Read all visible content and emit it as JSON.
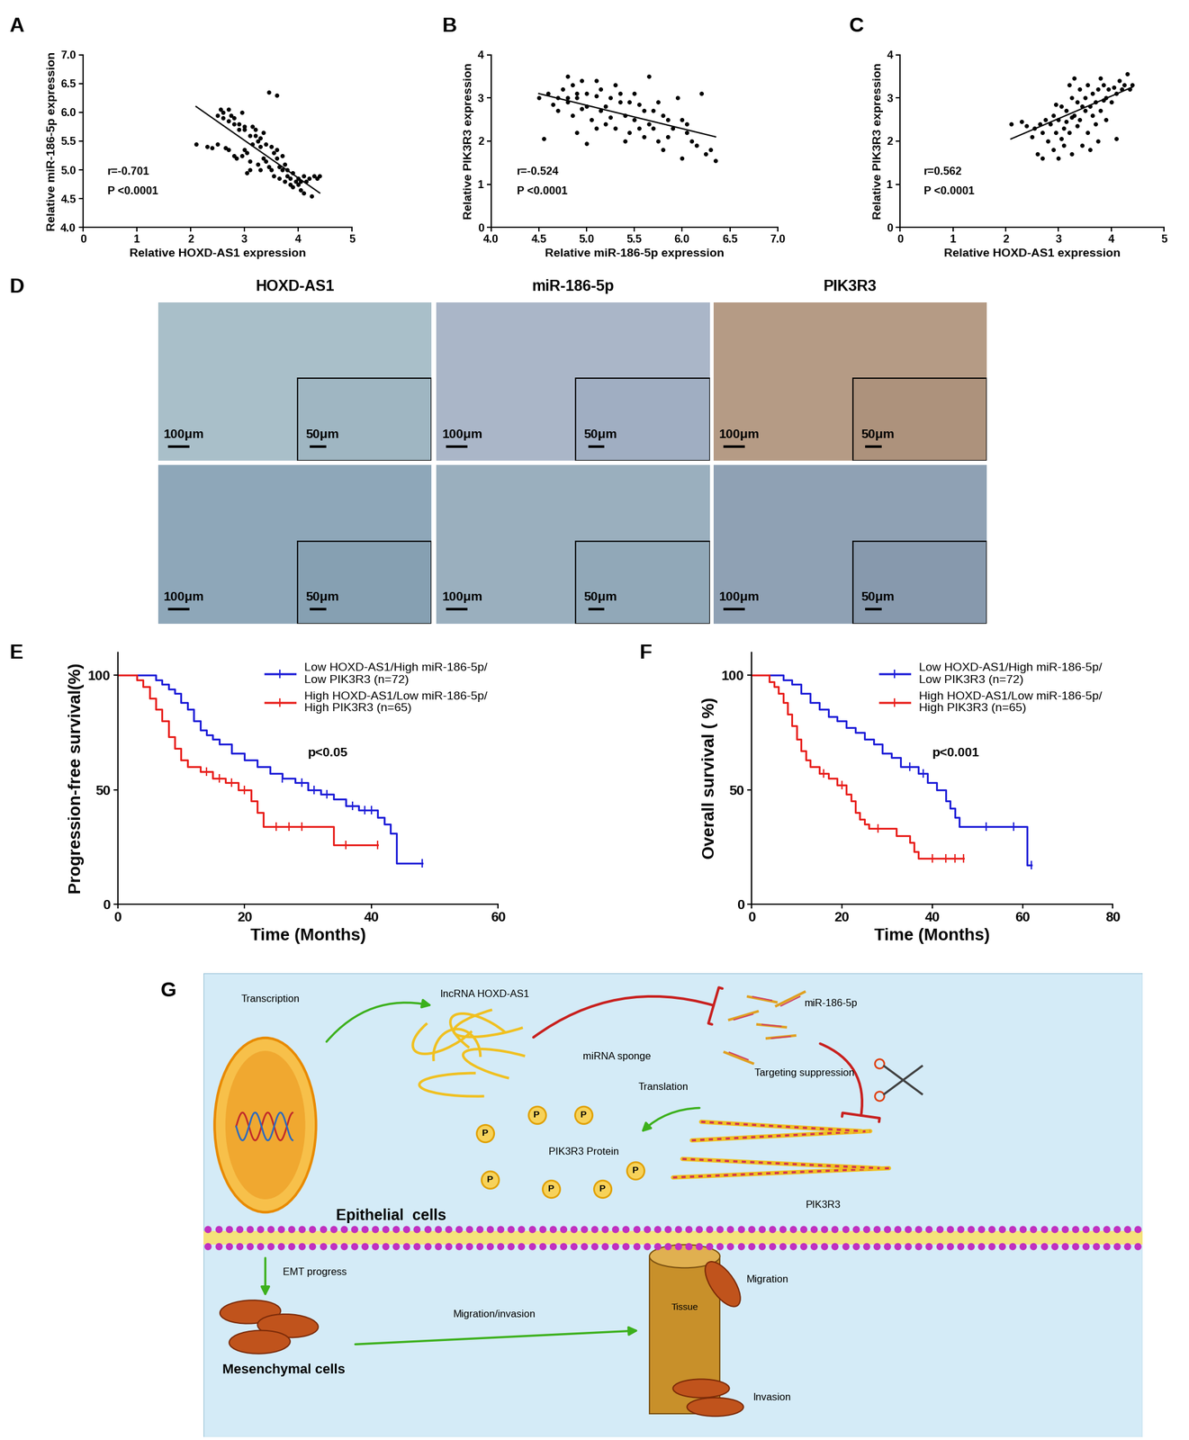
{
  "chart_data": [
    {
      "type": "scatter",
      "title": "A",
      "x_label": "Relative HOXD-AS1 expression",
      "y_label": "Relative miR-186-5p expression",
      "x": [
        2.1,
        2.3,
        2.4,
        2.5,
        2.5,
        2.55,
        2.6,
        2.6,
        2.7,
        2.7,
        2.75,
        2.8,
        2.8,
        2.65,
        2.7,
        2.8,
        2.85,
        2.9,
        2.9,
        2.95,
        3.0,
        3.0,
        3.05,
        3.1,
        3.1,
        3.1,
        3.15,
        3.2,
        3.2,
        3.25,
        3.25,
        3.3,
        3.3,
        3.35,
        3.35,
        3.4,
        3.4,
        3.45,
        3.5,
        3.5,
        3.55,
        3.55,
        3.6,
        3.6,
        3.6,
        3.65,
        3.7,
        3.7,
        3.75,
        3.75,
        3.8,
        3.8,
        3.85,
        3.9,
        3.9,
        3.95,
        4.0,
        4.0,
        4.05,
        4.1,
        4.1,
        4.15,
        4.2,
        4.25,
        4.3,
        4.35,
        4.4,
        3.05,
        2.95,
        3.15,
        3.45,
        3.65,
        3.85,
        4.05,
        3.3,
        3.0
      ],
      "values": [
        5.45,
        5.4,
        5.38,
        5.45,
        5.95,
        6.05,
        6.0,
        5.9,
        6.05,
        5.85,
        5.95,
        5.9,
        5.8,
        5.38,
        5.35,
        5.25,
        5.2,
        5.8,
        5.7,
        6.0,
        5.75,
        5.7,
        5.3,
        5.6,
        5.15,
        5.0,
        5.75,
        5.7,
        5.6,
        5.5,
        5.1,
        5.4,
        5.0,
        5.65,
        5.2,
        5.45,
        5.15,
        6.35,
        5.4,
        5.0,
        5.3,
        4.9,
        6.3,
        5.35,
        5.2,
        4.85,
        5.25,
        5.0,
        5.1,
        4.8,
        5.0,
        4.9,
        4.75,
        4.95,
        4.7,
        4.8,
        4.85,
        4.75,
        4.65,
        4.9,
        4.6,
        4.8,
        4.85,
        4.55,
        4.9,
        4.85,
        4.9,
        4.95,
        5.25,
        5.45,
        5.05,
        5.05,
        4.85,
        4.8,
        5.55,
        5.35
      ],
      "color": "#000000",
      "marker": "o",
      "fit_line": {
        "x": [
          2.1,
          4.4
        ],
        "values": [
          6.1,
          4.6
        ]
      },
      "xlim": [
        0,
        5
      ],
      "xticks": [
        0,
        1,
        2,
        3,
        4,
        5
      ],
      "ylim": [
        4,
        7
      ],
      "yticks": [
        {
          "value": 4,
          "label": "4.0"
        },
        4.5,
        {
          "value": 5,
          "label": "5.0"
        },
        5.5,
        {
          "value": 6,
          "label": "6.0"
        },
        6.5,
        {
          "value": 7,
          "label": "7.0"
        }
      ],
      "annotations": [
        "r=-0.701",
        "P <0.0001"
      ]
    },
    {
      "type": "scatter",
      "title": "B",
      "x_label": "Relative miR-186-5p expression",
      "y_label": "Relative PIK3R3 expression",
      "x": [
        4.5,
        4.55,
        4.6,
        4.65,
        4.7,
        4.75,
        4.8,
        4.8,
        4.8,
        4.85,
        4.85,
        4.9,
        4.9,
        4.9,
        4.95,
        5.0,
        5.0,
        5.0,
        5.05,
        5.1,
        5.1,
        5.1,
        5.15,
        5.2,
        5.2,
        5.25,
        5.3,
        5.3,
        5.35,
        5.4,
        5.4,
        5.45,
        5.5,
        5.5,
        5.55,
        5.6,
        5.6,
        5.65,
        5.7,
        5.7,
        5.75,
        5.75,
        5.8,
        5.8,
        5.85,
        5.9,
        5.95,
        6.0,
        6.0,
        6.05,
        6.1,
        6.15,
        6.2,
        6.25,
        6.3,
        6.35,
        5.15,
        5.25,
        5.55,
        5.65,
        4.95,
        5.45,
        5.85,
        6.05,
        4.7,
        5.35
      ],
      "values": [
        3.0,
        2.05,
        3.1,
        2.85,
        3.0,
        3.2,
        3.5,
        3.0,
        2.9,
        3.3,
        2.6,
        3.1,
        3.0,
        2.2,
        3.4,
        3.1,
        2.8,
        1.95,
        2.5,
        3.4,
        3.05,
        2.3,
        3.2,
        2.8,
        2.4,
        3.0,
        2.3,
        3.3,
        2.9,
        2.6,
        2.0,
        2.9,
        2.5,
        3.1,
        2.3,
        2.7,
        2.1,
        3.5,
        2.7,
        2.3,
        2.9,
        2.0,
        2.6,
        1.8,
        2.5,
        2.3,
        3.0,
        2.5,
        1.6,
        2.2,
        2.0,
        1.9,
        3.1,
        1.7,
        1.8,
        1.55,
        2.7,
        2.55,
        2.85,
        2.4,
        2.75,
        2.2,
        2.1,
        2.4,
        2.7,
        3.1
      ],
      "color": "#000000",
      "marker": "o",
      "fit_line": {
        "x": [
          4.5,
          6.35
        ],
        "values": [
          3.1,
          2.1
        ]
      },
      "xlim": [
        4,
        7
      ],
      "xticks": [
        {
          "value": 4,
          "label": "4.0"
        },
        4.5,
        {
          "value": 5,
          "label": "5.0"
        },
        5.5,
        {
          "value": 6,
          "label": "6.0"
        },
        6.5,
        {
          "value": 7,
          "label": "7.0"
        }
      ],
      "ylim": [
        0,
        4
      ],
      "yticks": [
        0,
        1,
        2,
        3,
        4
      ],
      "annotations": [
        "r=-0.524",
        "P <0.0001"
      ]
    },
    {
      "type": "scatter",
      "title": "C",
      "x_label": "Relative HOXD-AS1 expression",
      "y_label": "Relative PIK3R3 expression",
      "x": [
        2.1,
        2.3,
        2.4,
        2.5,
        2.55,
        2.6,
        2.65,
        2.7,
        2.7,
        2.75,
        2.8,
        2.85,
        2.9,
        2.9,
        2.95,
        3.0,
        3.0,
        3.05,
        3.1,
        3.1,
        3.15,
        3.2,
        3.2,
        3.25,
        3.25,
        3.3,
        3.3,
        3.35,
        3.4,
        3.4,
        3.45,
        3.5,
        3.5,
        3.55,
        3.55,
        3.6,
        3.6,
        3.65,
        3.7,
        3.7,
        3.75,
        3.8,
        3.85,
        3.9,
        3.9,
        3.95,
        4.0,
        4.05,
        4.1,
        4.1,
        4.15,
        4.2,
        4.25,
        4.3,
        4.35,
        4.4,
        3.35,
        3.05,
        3.15,
        3.45,
        3.65,
        3.75,
        3.85,
        2.95,
        3.25,
        3.8
      ],
      "values": [
        2.4,
        2.45,
        2.35,
        2.1,
        2.3,
        1.7,
        2.4,
        2.2,
        1.6,
        2.5,
        2.0,
        2.4,
        1.8,
        2.6,
        2.2,
        1.6,
        2.5,
        2.8,
        2.3,
        1.9,
        2.7,
        3.3,
        2.2,
        3.0,
        1.7,
        3.45,
        2.6,
        2.9,
        3.2,
        2.5,
        1.9,
        3.0,
        2.7,
        3.3,
        2.2,
        2.8,
        1.8,
        3.1,
        2.9,
        2.4,
        3.2,
        2.7,
        3.3,
        3.0,
        2.5,
        3.2,
        2.9,
        3.25,
        3.1,
        2.05,
        3.4,
        3.2,
        3.3,
        3.55,
        3.2,
        3.3,
        2.35,
        2.05,
        2.45,
        2.8,
        2.6,
        2.0,
        2.95,
        2.85,
        2.55,
        3.45
      ],
      "color": "#000000",
      "marker": "o",
      "fit_line": {
        "x": [
          2.1,
          4.4
        ],
        "values": [
          2.05,
          3.25
        ]
      },
      "xlim": [
        0,
        5
      ],
      "xticks": [
        0,
        1,
        2,
        3,
        4,
        5
      ],
      "ylim": [
        0,
        4
      ],
      "yticks": [
        0,
        1,
        2,
        3,
        4
      ],
      "annotations": [
        "r=0.562",
        "P <0.0001"
      ]
    },
    {
      "type": "step",
      "title": "E",
      "x_label": "Time (Months)",
      "y_label": "Progression-free survival(%)",
      "xlim": [
        0,
        60
      ],
      "xticks": [
        0,
        20,
        40,
        60
      ],
      "ylim": [
        0,
        110
      ],
      "yticks": [
        0,
        50,
        100
      ],
      "legend": "upper right",
      "annotations": [
        "p<0.05"
      ],
      "series": [
        {
          "name": "Low HOXD-AS1/High miR-186-5p/\nLow PIK3R3 (n=72)",
          "color": "#1f1fd8",
          "marker": "|",
          "x": [
            0,
            5,
            6,
            7,
            8,
            9,
            10,
            11,
            12,
            13,
            14,
            15,
            16,
            18,
            20,
            22,
            24,
            26,
            28,
            30,
            32,
            34,
            36,
            38,
            41,
            42,
            43,
            44,
            48
          ],
          "values": [
            100,
            100,
            98,
            96,
            94,
            92,
            88,
            85,
            80,
            76,
            74,
            72,
            70,
            66,
            63,
            60,
            57,
            55,
            53,
            50,
            48,
            46,
            43,
            41,
            38,
            35,
            31,
            18,
            18
          ],
          "censored": {
            "x": [
              26,
              29,
              31,
              33,
              37,
              39,
              40,
              48
            ],
            "values": [
              55,
              53,
              50,
              48,
              43,
              41,
              41,
              18
            ]
          }
        },
        {
          "name": "High HOXD-AS1/Low miR-186-5p/\nHigh PIK3R3 (n=65)",
          "color": "#e8211d",
          "marker": "|",
          "x": [
            0,
            3,
            4,
            5,
            6,
            7,
            8,
            9,
            10,
            11,
            13,
            15,
            17,
            19,
            21,
            22,
            23,
            34,
            41
          ],
          "values": [
            100,
            98,
            95,
            90,
            85,
            80,
            73,
            68,
            63,
            60,
            58,
            55,
            53,
            50,
            45,
            40,
            34,
            26,
            26
          ],
          "censored": {
            "x": [
              14,
              16,
              18,
              20,
              25,
              27,
              29,
              36,
              41
            ],
            "values": [
              58,
              55,
              53,
              50,
              34,
              34,
              34,
              26,
              26
            ]
          }
        }
      ]
    },
    {
      "type": "step",
      "title": "F",
      "x_label": "Time (Months)",
      "y_label": "Overall survival ( %)",
      "xlim": [
        0,
        80
      ],
      "xticks": [
        0,
        20,
        40,
        60,
        80
      ],
      "ylim": [
        0,
        110
      ],
      "yticks": [
        0,
        50,
        100
      ],
      "legend": "upper right",
      "annotations": [
        "p<0.001"
      ],
      "series": [
        {
          "name": "Low HOXD-AS1/High miR-186-5p/\nLow PIK3R3 (n=72)",
          "color": "#1f1fd8",
          "marker": "|",
          "x": [
            0,
            5,
            7,
            9,
            11,
            13,
            15,
            17,
            19,
            21,
            23,
            25,
            27,
            29,
            31,
            33,
            37,
            39,
            41,
            43,
            44,
            45,
            46,
            61,
            62
          ],
          "values": [
            100,
            100,
            98,
            96,
            92,
            88,
            85,
            82,
            80,
            77,
            75,
            72,
            70,
            66,
            64,
            60,
            57,
            53,
            50,
            45,
            42,
            38,
            34,
            17,
            17
          ],
          "censored": {
            "x": [
              35,
              38,
              52,
              58,
              62
            ],
            "values": [
              60,
              57,
              34,
              34,
              17
            ]
          }
        },
        {
          "name": "High HOXD-AS1/Low miR-186-5p/\nHigh PIK3R3 (n=65)",
          "color": "#e8211d",
          "marker": "|",
          "x": [
            0,
            4,
            5,
            6,
            7,
            8,
            9,
            10,
            11,
            12,
            13,
            15,
            17,
            19,
            21,
            22,
            23,
            24,
            25,
            26,
            32,
            35,
            36,
            37,
            47
          ],
          "values": [
            100,
            97,
            95,
            92,
            88,
            83,
            78,
            72,
            67,
            63,
            60,
            57,
            55,
            52,
            48,
            45,
            40,
            37,
            35,
            33,
            30,
            27,
            23,
            20,
            20
          ],
          "censored": {
            "x": [
              16,
              20,
              28,
              40,
              43,
              45,
              47
            ],
            "values": [
              57,
              52,
              33,
              20,
              20,
              20,
              20
            ]
          }
        }
      ]
    }
  ],
  "micrographs": {
    "title": "D",
    "columns": [
      "HOXD-AS1",
      "miR-186-5p",
      "PIK3R3"
    ],
    "rows": 2,
    "scale_bars": [
      "100μm",
      "50μm"
    ]
  },
  "diagram": {
    "title": "G",
    "nodes": {
      "transcription": "Transcription",
      "lncrna": "lncRNA HOXD-AS1",
      "sponge": "miRNA sponge",
      "mirna": "miR-186-5p",
      "suppression": "Targeting suppression",
      "translation": "Translation",
      "protein": "PIK3R3 Protein",
      "protein_symbol": "P",
      "mrna": "PIK3R3",
      "epithelial": "Epithelial  cells",
      "emt": "EMT progress",
      "mesenchymal": "Mesenchymal cells",
      "migration_invasion": "Migration/invasion",
      "tissue": "Tissue",
      "migration": "Migration",
      "invasion": "Invasion"
    }
  }
}
